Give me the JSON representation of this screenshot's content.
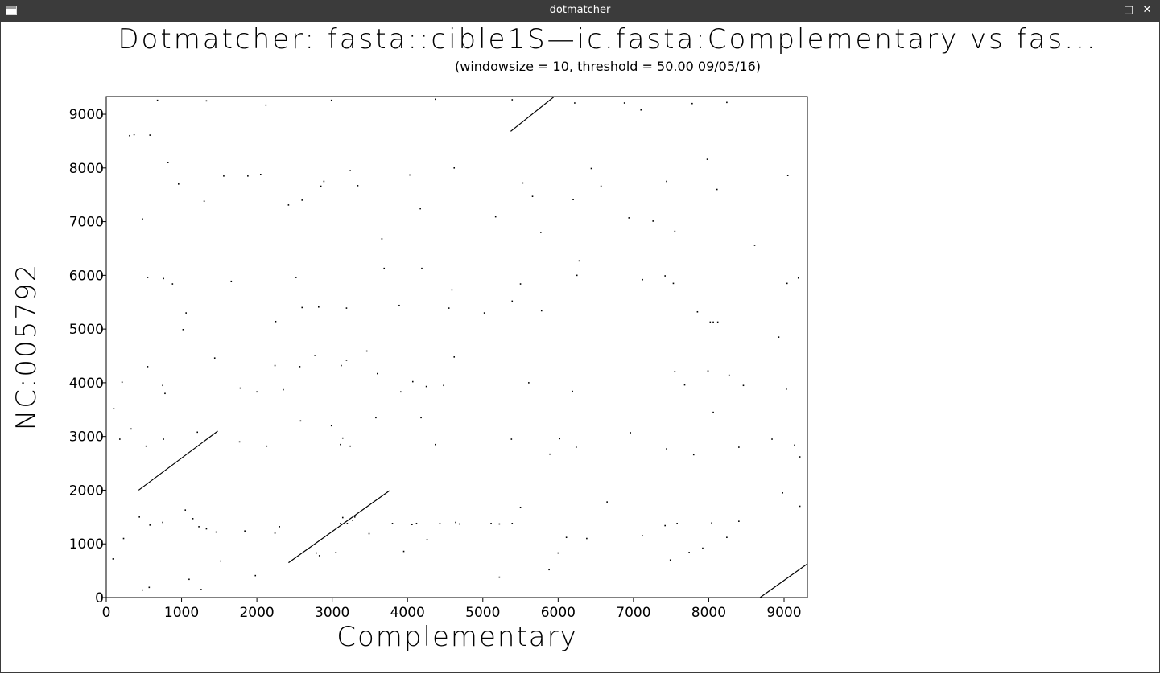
{
  "window": {
    "title": "dotmatcher",
    "minimize_glyph": "–",
    "maximize_glyph": "□",
    "close_glyph": "✕",
    "app_icon": "window-icon"
  },
  "chart_data": {
    "type": "scatter",
    "title": "Dotmatcher: fasta::cible1S—ic.fasta:Complementary vs fas...",
    "subtitle": "(windowsize = 10, threshold = 50.00  09/05/16)",
    "xlabel": "Complementary",
    "ylabel": "NC:005792",
    "xlim": [
      0,
      9310
    ],
    "ylim": [
      0,
      9330
    ],
    "xticks": [
      0,
      1000,
      2000,
      3000,
      4000,
      5000,
      6000,
      7000,
      8000,
      9000
    ],
    "yticks": [
      0,
      1000,
      2000,
      3000,
      4000,
      5000,
      6000,
      7000,
      8000,
      9000
    ],
    "grid": false,
    "color": "#000000",
    "diagonal_segments": [
      {
        "x": [
          430,
          1480
        ],
        "y": [
          2000,
          3100
        ]
      },
      {
        "x": [
          2420,
          3760
        ],
        "y": [
          650,
          1990
        ]
      },
      {
        "x": [
          5370,
          5940
        ],
        "y": [
          8680,
          9320
        ]
      },
      {
        "x": [
          8680,
          9300
        ],
        "y": [
          0,
          620
        ]
      }
    ],
    "points": [
      [
        310,
        8600
      ],
      [
        370,
        8620
      ],
      [
        580,
        8610
      ],
      [
        680,
        9260
      ],
      [
        1330,
        9250
      ],
      [
        2120,
        9170
      ],
      [
        2990,
        9260
      ],
      [
        4370,
        9280
      ],
      [
        5390,
        9270
      ],
      [
        6220,
        9210
      ],
      [
        6880,
        9210
      ],
      [
        7100,
        9080
      ],
      [
        7780,
        9200
      ],
      [
        8240,
        9220
      ],
      [
        820,
        8100
      ],
      [
        960,
        7700
      ],
      [
        1560,
        7850
      ],
      [
        1880,
        7850
      ],
      [
        2050,
        7880
      ],
      [
        2850,
        7660
      ],
      [
        2890,
        7750
      ],
      [
        3240,
        7950
      ],
      [
        3340,
        7670
      ],
      [
        4030,
        7870
      ],
      [
        4620,
        8000
      ],
      [
        5530,
        7720
      ],
      [
        6440,
        7990
      ],
      [
        6570,
        7660
      ],
      [
        7440,
        7750
      ],
      [
        7980,
        8160
      ],
      [
        8110,
        7600
      ],
      [
        9050,
        7860
      ],
      [
        480,
        7050
      ],
      [
        1300,
        7380
      ],
      [
        2420,
        7310
      ],
      [
        2600,
        7400
      ],
      [
        3660,
        6680
      ],
      [
        4170,
        7240
      ],
      [
        5170,
        7090
      ],
      [
        5660,
        7470
      ],
      [
        5770,
        6800
      ],
      [
        6200,
        7410
      ],
      [
        6940,
        7070
      ],
      [
        7260,
        7010
      ],
      [
        7550,
        6820
      ],
      [
        8610,
        6560
      ],
      [
        550,
        5960
      ],
      [
        760,
        5940
      ],
      [
        880,
        5840
      ],
      [
        1660,
        5890
      ],
      [
        2520,
        5960
      ],
      [
        3690,
        6130
      ],
      [
        4190,
        6130
      ],
      [
        4590,
        5730
      ],
      [
        5500,
        5840
      ],
      [
        6280,
        6270
      ],
      [
        6250,
        6000
      ],
      [
        7120,
        5920
      ],
      [
        7420,
        5990
      ],
      [
        7530,
        5850
      ],
      [
        9040,
        5850
      ],
      [
        9190,
        5950
      ],
      [
        1020,
        4990
      ],
      [
        1060,
        5300
      ],
      [
        2250,
        5140
      ],
      [
        2600,
        5400
      ],
      [
        2820,
        5410
      ],
      [
        3190,
        5390
      ],
      [
        3890,
        5440
      ],
      [
        4550,
        5390
      ],
      [
        5020,
        5300
      ],
      [
        5390,
        5520
      ],
      [
        5780,
        5340
      ],
      [
        7850,
        5320
      ],
      [
        8020,
        5130
      ],
      [
        8060,
        5130
      ],
      [
        8120,
        5130
      ],
      [
        8930,
        4850
      ],
      [
        210,
        4010
      ],
      [
        550,
        4300
      ],
      [
        750,
        3950
      ],
      [
        780,
        3800
      ],
      [
        1440,
        4460
      ],
      [
        1780,
        3900
      ],
      [
        2000,
        3830
      ],
      [
        2240,
        4320
      ],
      [
        2350,
        3870
      ],
      [
        2570,
        4300
      ],
      [
        2770,
        4510
      ],
      [
        3120,
        4320
      ],
      [
        3190,
        4420
      ],
      [
        3460,
        4590
      ],
      [
        3600,
        4170
      ],
      [
        3910,
        3830
      ],
      [
        4070,
        4020
      ],
      [
        4250,
        3930
      ],
      [
        4480,
        3950
      ],
      [
        4620,
        4480
      ],
      [
        5610,
        4000
      ],
      [
        6190,
        3840
      ],
      [
        7550,
        4210
      ],
      [
        7680,
        3960
      ],
      [
        7990,
        4220
      ],
      [
        8270,
        4140
      ],
      [
        8460,
        3950
      ],
      [
        9030,
        3880
      ],
      [
        100,
        3520
      ],
      [
        180,
        2950
      ],
      [
        330,
        3140
      ],
      [
        530,
        2820
      ],
      [
        760,
        2950
      ],
      [
        1210,
        3080
      ],
      [
        1770,
        2900
      ],
      [
        2130,
        2820
      ],
      [
        2580,
        3290
      ],
      [
        2990,
        3200
      ],
      [
        3110,
        2850
      ],
      [
        3140,
        2970
      ],
      [
        3240,
        2820
      ],
      [
        3580,
        3350
      ],
      [
        4180,
        3350
      ],
      [
        4370,
        2850
      ],
      [
        5380,
        2950
      ],
      [
        5890,
        2670
      ],
      [
        6020,
        2960
      ],
      [
        6240,
        2800
      ],
      [
        6960,
        3070
      ],
      [
        7440,
        2770
      ],
      [
        7800,
        2660
      ],
      [
        8060,
        3450
      ],
      [
        8400,
        2800
      ],
      [
        8840,
        2950
      ],
      [
        9140,
        2840
      ],
      [
        9210,
        2620
      ],
      [
        90,
        720
      ],
      [
        230,
        1100
      ],
      [
        440,
        1500
      ],
      [
        580,
        1350
      ],
      [
        750,
        1400
      ],
      [
        1050,
        1630
      ],
      [
        1150,
        1470
      ],
      [
        1230,
        1320
      ],
      [
        1330,
        1280
      ],
      [
        1460,
        1220
      ],
      [
        1520,
        680
      ],
      [
        1840,
        1240
      ],
      [
        2240,
        1200
      ],
      [
        2300,
        1320
      ],
      [
        2790,
        830
      ],
      [
        3110,
        1380
      ],
      [
        3140,
        1490
      ],
      [
        3200,
        1380
      ],
      [
        3270,
        1440
      ],
      [
        3300,
        1500
      ],
      [
        3490,
        1190
      ],
      [
        3800,
        1380
      ],
      [
        3950,
        860
      ],
      [
        4060,
        1360
      ],
      [
        4120,
        1380
      ],
      [
        4260,
        1080
      ],
      [
        4430,
        1380
      ],
      [
        4640,
        1400
      ],
      [
        4690,
        1370
      ],
      [
        5110,
        1380
      ],
      [
        5220,
        1370
      ],
      [
        5390,
        1380
      ],
      [
        5500,
        1680
      ],
      [
        6110,
        1120
      ],
      [
        6380,
        1100
      ],
      [
        6650,
        1780
      ],
      [
        7120,
        1150
      ],
      [
        7420,
        1340
      ],
      [
        7580,
        1380
      ],
      [
        7740,
        840
      ],
      [
        8040,
        1390
      ],
      [
        8240,
        1120
      ],
      [
        8400,
        1420
      ],
      [
        8980,
        1950
      ],
      [
        480,
        140
      ],
      [
        570,
        190
      ],
      [
        1100,
        340
      ],
      [
        1260,
        150
      ],
      [
        1980,
        410
      ],
      [
        2830,
        780
      ],
      [
        3050,
        840
      ],
      [
        5220,
        380
      ],
      [
        5880,
        520
      ],
      [
        6000,
        830
      ],
      [
        7490,
        700
      ],
      [
        7920,
        920
      ],
      [
        9210,
        1700
      ]
    ]
  }
}
